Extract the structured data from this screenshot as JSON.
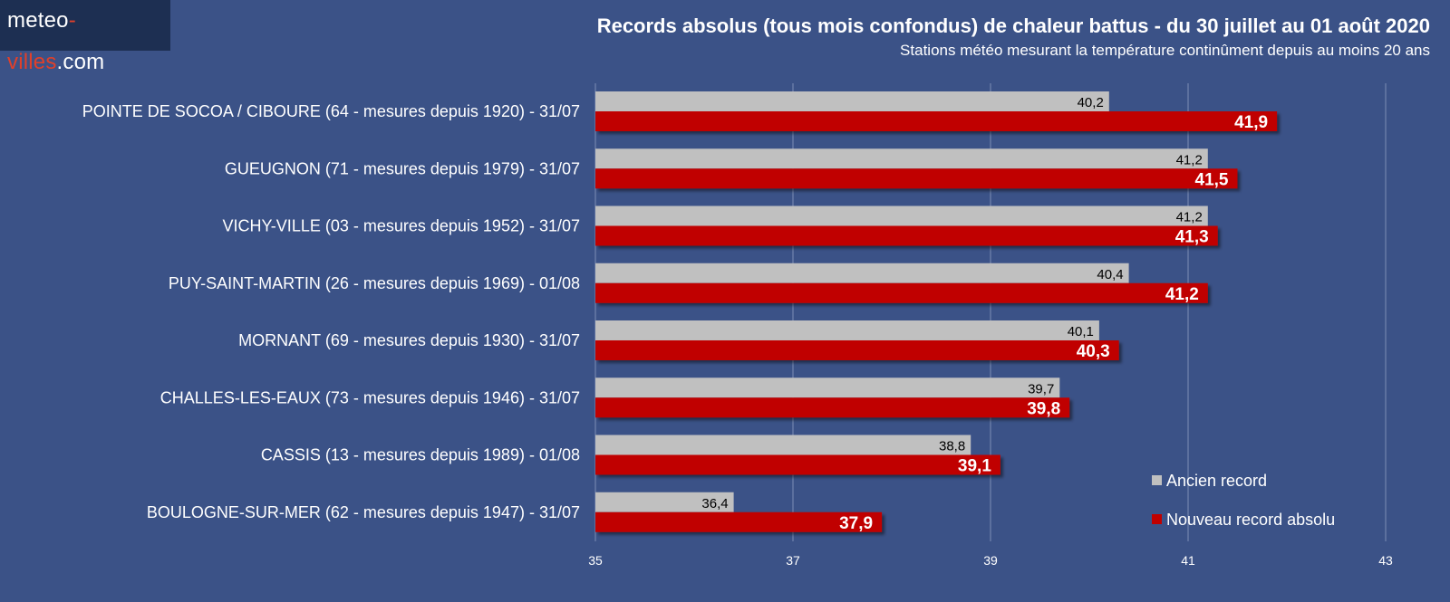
{
  "logo": {
    "part1": "meteo",
    "part2": "-villes",
    "part3": ".com"
  },
  "title": "Records absolus (tous mois confondus) de chaleur battus - du 30 juillet au 01 août 2020",
  "subtitle": "Stations météo mesurant la température continûment depuis au moins 20 ans",
  "chart_data": {
    "type": "bar",
    "orientation": "horizontal",
    "categories": [
      "POINTE DE SOCOA / CIBOURE (64 - mesures depuis 1920) - 31/07",
      "GUEUGNON (71 - mesures depuis 1979) - 31/07",
      "VICHY-VILLE (03 - mesures depuis 1952) - 31/07",
      "PUY-SAINT-MARTIN (26 - mesures depuis 1969) - 01/08",
      "MORNANT (69 - mesures depuis 1930) - 31/07",
      "CHALLES-LES-EAUX (73 - mesures depuis 1946) - 31/07",
      "CASSIS (13 - mesures depuis 1989) - 01/08",
      "BOULOGNE-SUR-MER (62 - mesures depuis 1947) - 31/07"
    ],
    "series": [
      {
        "name": "Ancien record",
        "color": "#c0c0c0",
        "values": [
          40.2,
          41.2,
          41.2,
          40.4,
          40.1,
          39.7,
          38.8,
          36.4
        ],
        "labels": [
          "40,2",
          "41,2",
          "41,2",
          "40,4",
          "40,1",
          "39,7",
          "38,8",
          "36,4"
        ]
      },
      {
        "name": "Nouveau record absolu",
        "color": "#c00000",
        "values": [
          41.9,
          41.5,
          41.3,
          41.2,
          40.3,
          39.8,
          39.1,
          37.9
        ],
        "labels": [
          "41,9",
          "41,5",
          "41,3",
          "41,2",
          "40,3",
          "39,8",
          "39,1",
          "37,9"
        ]
      }
    ],
    "xlim": [
      35,
      43
    ],
    "xticks": [
      "35",
      "37",
      "39",
      "41",
      "43"
    ],
    "grid": true,
    "legend_position": "bottom-right"
  }
}
